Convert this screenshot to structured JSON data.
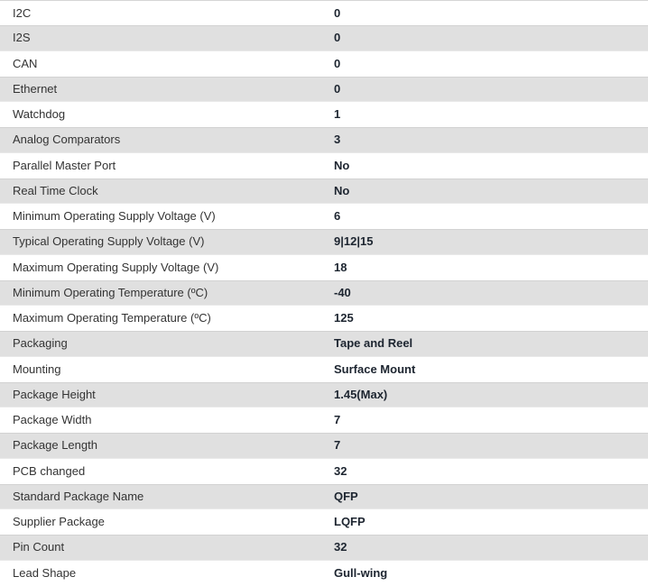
{
  "table": {
    "name": "component-specifications",
    "rows": [
      {
        "label": "I2C",
        "value": "0"
      },
      {
        "label": "I2S",
        "value": "0"
      },
      {
        "label": "CAN",
        "value": "0"
      },
      {
        "label": "Ethernet",
        "value": "0"
      },
      {
        "label": "Watchdog",
        "value": "1"
      },
      {
        "label": "Analog Comparators",
        "value": "3"
      },
      {
        "label": "Parallel Master Port",
        "value": "No"
      },
      {
        "label": "Real Time Clock",
        "value": "No"
      },
      {
        "label": "Minimum Operating Supply Voltage (V)",
        "value": "6"
      },
      {
        "label": "Typical Operating Supply Voltage (V)",
        "value": "9|12|15"
      },
      {
        "label": "Maximum Operating Supply Voltage (V)",
        "value": "18"
      },
      {
        "label": "Minimum Operating Temperature (ºC)",
        "value": "-40"
      },
      {
        "label": "Maximum Operating Temperature (ºC)",
        "value": "125"
      },
      {
        "label": "Packaging",
        "value": "Tape and Reel"
      },
      {
        "label": "Mounting",
        "value": "Surface Mount"
      },
      {
        "label": "Package Height",
        "value": "1.45(Max)"
      },
      {
        "label": "Package Width",
        "value": "7"
      },
      {
        "label": "Package Length",
        "value": "7"
      },
      {
        "label": "PCB changed",
        "value": "32"
      },
      {
        "label": "Standard Package Name",
        "value": "QFP"
      },
      {
        "label": "Supplier Package",
        "value": "LQFP"
      },
      {
        "label": "Pin Count",
        "value": "32"
      },
      {
        "label": "Lead Shape",
        "value": "Gull-wing"
      }
    ],
    "colors": {
      "row_bg": "#ffffff",
      "row_alt_bg": "#e0e0e0",
      "label_color": "#333333",
      "value_color": "#1d2530",
      "border_color": "#d6d6d6"
    }
  }
}
